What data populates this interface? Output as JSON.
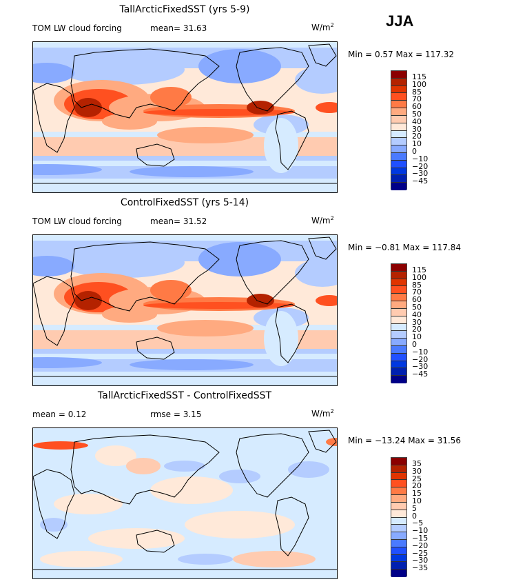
{
  "season": "JJA",
  "colors": [
    "#8b0000",
    "#b42200",
    "#e03400",
    "#ff5020",
    "#ff7a45",
    "#ffaa80",
    "#ffcbb0",
    "#ffe9d9",
    "#d6ebff",
    "#b4ccff",
    "#88aaff",
    "#4a7aff",
    "#2050ff",
    "#0038e0",
    "#0020b0",
    "#000088"
  ],
  "panels": [
    {
      "title": "TallArcticFixedSST (yrs 5-9)",
      "left_label": "TOM LW cloud forcing",
      "stat_label": "mean=  31.63",
      "units": "W/m",
      "units_sup": "2",
      "minmax": "Min =    0.57  Max = 117.32",
      "levels": [
        "115",
        "100",
        "85",
        "70",
        "60",
        "50",
        "40",
        "30",
        "20",
        "10",
        "0",
        "−10",
        "−20",
        "−30",
        "−45"
      ]
    },
    {
      "title": "ControlFixedSST (yrs 5-14)",
      "left_label": "TOM LW cloud forcing",
      "stat_label": "mean=  31.52",
      "units": "W/m",
      "units_sup": "2",
      "minmax": "Min =  −0.81  Max = 117.84",
      "levels": [
        "115",
        "100",
        "85",
        "70",
        "60",
        "50",
        "40",
        "30",
        "20",
        "10",
        "0",
        "−10",
        "−20",
        "−30",
        "−45"
      ]
    },
    {
      "title": "TallArcticFixedSST - ControlFixedSST",
      "left_label": "mean =   0.12",
      "stat_label": "rmse =   3.15",
      "units": "W/m",
      "units_sup": "2",
      "minmax": "Min = −13.24  Max =  31.56",
      "levels": [
        "35",
        "30",
        "25",
        "20",
        "15",
        "10",
        "5",
        "0",
        "−5",
        "−10",
        "−15",
        "−20",
        "−25",
        "−30",
        "−35"
      ]
    }
  ]
}
